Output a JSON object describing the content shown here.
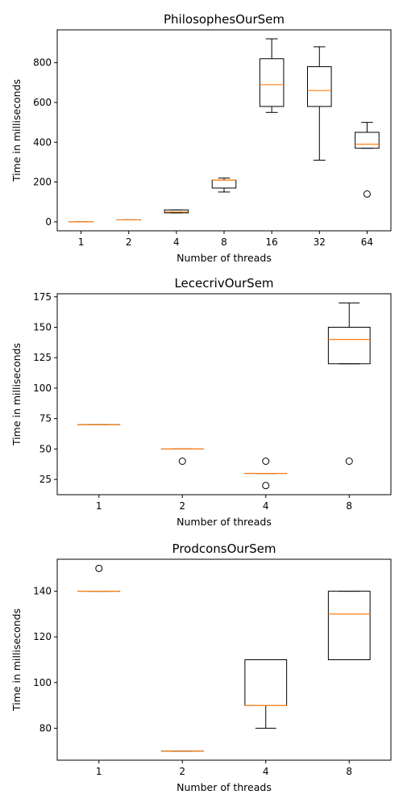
{
  "chart_data": [
    {
      "type": "box",
      "title": "PhilosophesOurSem",
      "xlabel": "Number of threads",
      "ylabel": "Time in milliseconds",
      "categories": [
        "1",
        "2",
        "4",
        "8",
        "16",
        "32",
        "64"
      ],
      "ylim": [
        -45,
        965
      ],
      "yticks": [
        0,
        200,
        400,
        600,
        800
      ],
      "boxes": [
        {
          "whislo": 0,
          "q1": 0,
          "med": 0,
          "q3": 0,
          "whishi": 0,
          "fliers": []
        },
        {
          "whislo": 10,
          "q1": 10,
          "med": 10,
          "q3": 10,
          "whishi": 10,
          "fliers": []
        },
        {
          "whislo": 45,
          "q1": 45,
          "med": 50,
          "q3": 60,
          "whishi": 60,
          "fliers": []
        },
        {
          "whislo": 150,
          "q1": 170,
          "med": 210,
          "q3": 210,
          "whishi": 220,
          "fliers": []
        },
        {
          "whislo": 550,
          "q1": 580,
          "med": 690,
          "q3": 820,
          "whishi": 920,
          "fliers": []
        },
        {
          "whislo": 310,
          "q1": 580,
          "med": 660,
          "q3": 780,
          "whishi": 880,
          "fliers": []
        },
        {
          "whislo": 370,
          "q1": 370,
          "med": 390,
          "q3": 450,
          "whishi": 500,
          "fliers": [
            140
          ]
        }
      ]
    },
    {
      "type": "box",
      "title": "LececrivOurSem",
      "xlabel": "Number of threads",
      "ylabel": "Time in milliseconds",
      "categories": [
        "1",
        "2",
        "4",
        "8"
      ],
      "ylim": [
        12.5,
        177.5
      ],
      "yticks": [
        25,
        50,
        75,
        100,
        125,
        150,
        175
      ],
      "boxes": [
        {
          "whislo": 70,
          "q1": 70,
          "med": 70,
          "q3": 70,
          "whishi": 70,
          "fliers": []
        },
        {
          "whislo": 50,
          "q1": 50,
          "med": 50,
          "q3": 50,
          "whishi": 50,
          "fliers": [
            40
          ]
        },
        {
          "whislo": 30,
          "q1": 30,
          "med": 30,
          "q3": 30,
          "whishi": 30,
          "fliers": [
            40,
            20
          ]
        },
        {
          "whislo": 120,
          "q1": 120,
          "med": 140,
          "q3": 150,
          "whishi": 170,
          "fliers": [
            40
          ]
        }
      ]
    },
    {
      "type": "box",
      "title": "ProdconsOurSem",
      "xlabel": "Number of threads",
      "ylabel": "Time in milliseconds",
      "categories": [
        "1",
        "2",
        "4",
        "8"
      ],
      "ylim": [
        66,
        154
      ],
      "yticks": [
        80,
        100,
        120,
        140
      ],
      "boxes": [
        {
          "whislo": 140,
          "q1": 140,
          "med": 140,
          "q3": 140,
          "whishi": 140,
          "fliers": [
            150
          ]
        },
        {
          "whislo": 70,
          "q1": 70,
          "med": 70,
          "q3": 70,
          "whishi": 70,
          "fliers": []
        },
        {
          "whislo": 80,
          "q1": 90,
          "med": 90,
          "q3": 110,
          "whishi": 110,
          "fliers": []
        },
        {
          "whislo": 110,
          "q1": 110,
          "med": 130,
          "q3": 140,
          "whishi": 140,
          "fliers": []
        }
      ]
    }
  ]
}
